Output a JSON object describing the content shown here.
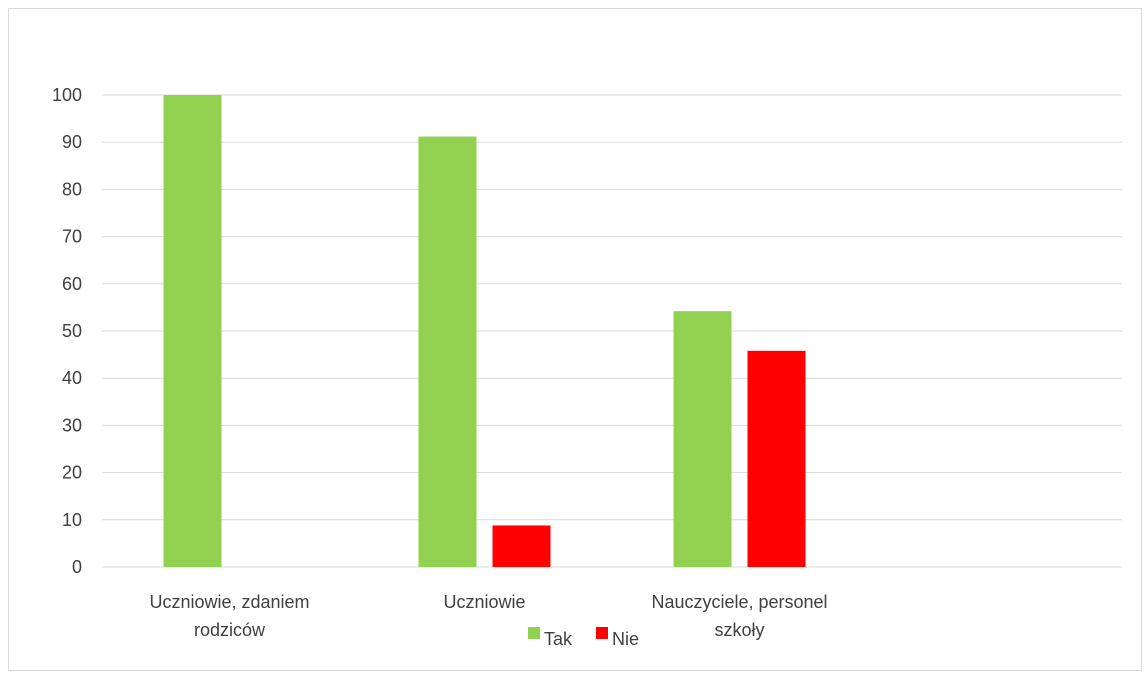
{
  "chart_data": {
    "type": "bar",
    "categories": [
      [
        "Uczniowie, zdaniem",
        "rodziców"
      ],
      [
        "Uczniowie"
      ],
      [
        "Nauczyciele, personel",
        "szkoły"
      ]
    ],
    "series": [
      {
        "name": "Tak",
        "color": "#92d050",
        "values": [
          100,
          91.2,
          54.2
        ]
      },
      {
        "name": "Nie",
        "color": "#ff0000",
        "values": [
          0,
          8.8,
          45.8
        ]
      }
    ],
    "yticks": [
      0,
      10,
      20,
      30,
      40,
      50,
      60,
      70,
      80,
      90,
      100
    ],
    "ylim": [
      0,
      100
    ],
    "grid": true,
    "legend": "bottom"
  }
}
